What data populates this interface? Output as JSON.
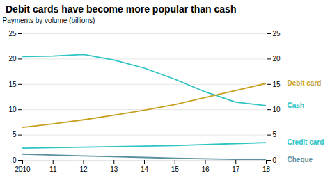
{
  "chart_data": {
    "type": "line",
    "title": "Debit cards have become more popular than cash",
    "ylabel": "Payments by volume (billions)",
    "x": [
      2010,
      2011,
      2012,
      2013,
      2014,
      2015,
      2016,
      2017,
      2018
    ],
    "series": [
      {
        "name": "Cash",
        "color": "#2ec4c4",
        "values": [
          20.5,
          20.6,
          20.9,
          19.8,
          18.2,
          16.0,
          13.5,
          11.5,
          10.8
        ]
      },
      {
        "name": "Debit card",
        "color": "#c8a020",
        "values": [
          6.5,
          7.2,
          8.0,
          8.9,
          9.9,
          11.0,
          12.4,
          13.8,
          15.2
        ]
      },
      {
        "name": "Credit card",
        "color": "#2ec4c4",
        "values": [
          2.4,
          2.5,
          2.6,
          2.7,
          2.8,
          2.9,
          3.1,
          3.3,
          3.5
        ]
      },
      {
        "name": "Cheque",
        "color": "#5a8fa0",
        "values": [
          1.2,
          1.0,
          0.85,
          0.7,
          0.55,
          0.4,
          0.3,
          0.2,
          0.1
        ]
      }
    ],
    "xlim": [
      2010,
      2018
    ],
    "xticks": [
      2010,
      {
        "value": 2011,
        "label": "11"
      },
      {
        "value": 2012,
        "label": "12"
      },
      {
        "value": 2013,
        "label": "13"
      },
      {
        "value": 2014,
        "label": "14"
      },
      {
        "value": 2015,
        "label": "15"
      },
      {
        "value": 2016,
        "label": "16"
      },
      {
        "value": 2017,
        "label": "17"
      },
      {
        "value": 2018,
        "label": "18"
      }
    ],
    "ylim": [
      0,
      25
    ],
    "yticks": [
      0,
      5,
      10,
      15,
      20,
      25
    ],
    "y2lim": [
      0,
      25
    ],
    "y2ticks": [
      0,
      5,
      10,
      15,
      20,
      25
    ],
    "grid": true
  }
}
